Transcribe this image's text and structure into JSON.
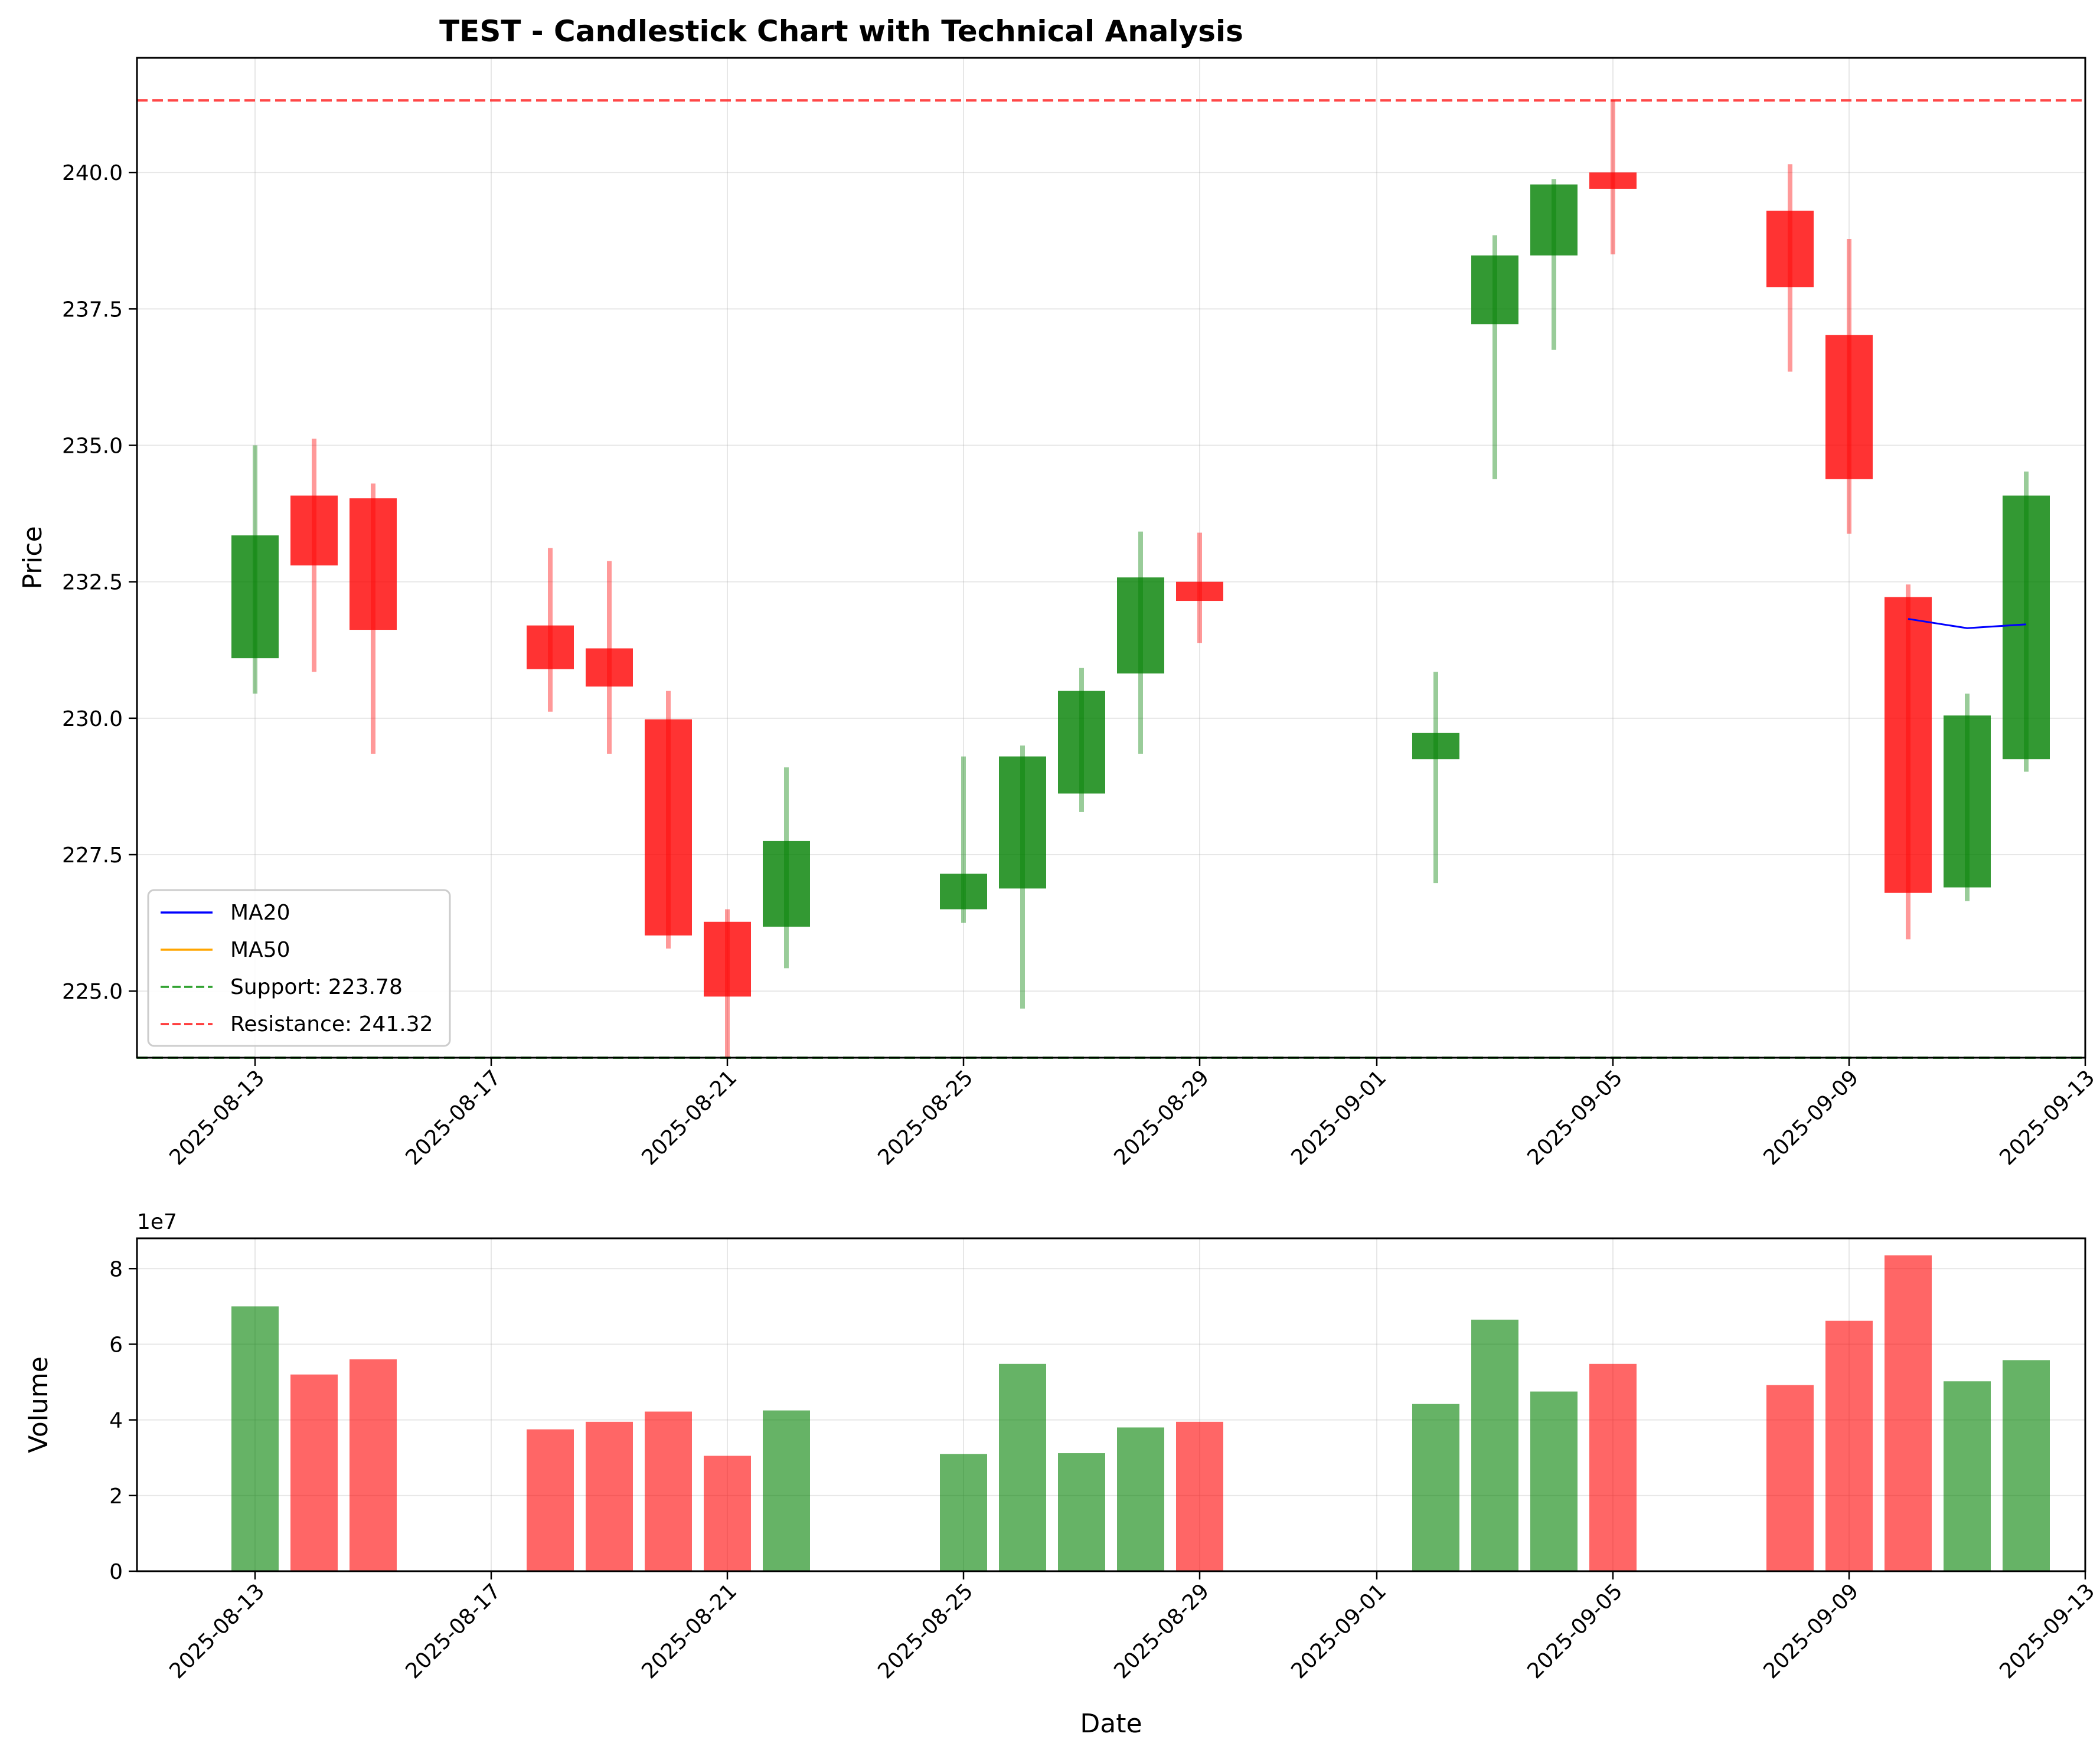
{
  "chart_data": [
    {
      "type": "candlestick",
      "title": "TEST - Candlestick Chart with Technical Analysis",
      "ylabel": "Price",
      "ylim": [
        223.78,
        242.1
      ],
      "xlim": [
        "2025-08-11",
        "2025-09-13"
      ],
      "y_ticks": [
        "225.0",
        "227.5",
        "230.0",
        "232.5",
        "235.0",
        "237.5",
        "240.0"
      ],
      "x_ticks": [
        "2025-08-13",
        "2025-08-17",
        "2025-08-21",
        "2025-08-25",
        "2025-08-29",
        "2025-09-01",
        "2025-09-05",
        "2025-09-09",
        "2025-09-13"
      ],
      "grid": true,
      "legend": {
        "placement": "lower-left",
        "entries": [
          "MA20",
          "MA50",
          "Support: 223.78",
          "Resistance: 241.32"
        ]
      },
      "ohlc": [
        {
          "date": "2025-08-13",
          "open": 231.1,
          "high": 235.0,
          "low": 230.45,
          "close": 233.35
        },
        {
          "date": "2025-08-14",
          "open": 234.08,
          "high": 235.12,
          "low": 230.85,
          "close": 232.8
        },
        {
          "date": "2025-08-15",
          "open": 234.03,
          "high": 234.3,
          "low": 229.35,
          "close": 231.62
        },
        {
          "date": "2025-08-18",
          "open": 231.7,
          "high": 233.12,
          "low": 230.12,
          "close": 230.9
        },
        {
          "date": "2025-08-19",
          "open": 231.28,
          "high": 232.88,
          "low": 229.35,
          "close": 230.58
        },
        {
          "date": "2025-08-20",
          "open": 229.98,
          "high": 230.5,
          "low": 225.78,
          "close": 226.02
        },
        {
          "date": "2025-08-21",
          "open": 226.27,
          "high": 226.5,
          "low": 223.78,
          "close": 224.9
        },
        {
          "date": "2025-08-22",
          "open": 226.18,
          "high": 229.1,
          "low": 225.42,
          "close": 227.75
        },
        {
          "date": "2025-08-25",
          "open": 226.5,
          "high": 229.3,
          "low": 226.25,
          "close": 227.15
        },
        {
          "date": "2025-08-26",
          "open": 226.88,
          "high": 229.5,
          "low": 224.68,
          "close": 229.3
        },
        {
          "date": "2025-08-27",
          "open": 228.62,
          "high": 230.92,
          "low": 228.28,
          "close": 230.5
        },
        {
          "date": "2025-08-28",
          "open": 230.82,
          "high": 233.42,
          "low": 229.35,
          "close": 232.58
        },
        {
          "date": "2025-08-29",
          "open": 232.5,
          "high": 233.4,
          "low": 231.38,
          "close": 232.15
        },
        {
          "date": "2025-09-02",
          "open": 229.25,
          "high": 230.85,
          "low": 226.98,
          "close": 229.73
        },
        {
          "date": "2025-09-03",
          "open": 237.22,
          "high": 238.85,
          "low": 234.38,
          "close": 238.48
        },
        {
          "date": "2025-09-04",
          "open": 238.48,
          "high": 239.88,
          "low": 236.75,
          "close": 239.78
        },
        {
          "date": "2025-09-05",
          "open": 240.0,
          "high": 241.32,
          "low": 238.5,
          "close": 239.7
        },
        {
          "date": "2025-09-08",
          "open": 239.3,
          "high": 240.15,
          "low": 236.35,
          "close": 237.9
        },
        {
          "date": "2025-09-09",
          "open": 237.02,
          "high": 238.78,
          "low": 233.38,
          "close": 234.38
        },
        {
          "date": "2025-09-10",
          "open": 232.22,
          "high": 232.45,
          "low": 225.95,
          "close": 226.8
        },
        {
          "date": "2025-09-11",
          "open": 226.9,
          "high": 230.45,
          "low": 226.65,
          "close": 230.05
        },
        {
          "date": "2025-09-12",
          "open": 229.25,
          "high": 234.52,
          "low": 229.02,
          "close": 234.08
        }
      ],
      "series": [
        {
          "name": "MA20",
          "color": "#0000ff",
          "points": [
            [
              "2025-09-10",
              231.82
            ],
            [
              "2025-09-11",
              231.65
            ],
            [
              "2025-09-12",
              231.72
            ]
          ]
        },
        {
          "name": "MA50",
          "color": "#ffa500",
          "points": []
        }
      ],
      "hlines": [
        {
          "name": "Support: 223.78",
          "value": 223.78,
          "color": "#2ca02c",
          "dashed": true
        },
        {
          "name": "Resistance: 241.32",
          "value": 241.32,
          "color": "#ff3333",
          "dashed": true
        }
      ],
      "colors": {
        "up": "#008000",
        "down": "#ff0000"
      }
    },
    {
      "type": "bar",
      "xlabel": "Date",
      "ylabel": "Volume",
      "scale_label": "1e7",
      "ylim": [
        0,
        8.8
      ],
      "y_ticks": [
        "0",
        "2",
        "4",
        "6",
        "8"
      ],
      "x_ticks": [
        "2025-08-13",
        "2025-08-17",
        "2025-08-21",
        "2025-08-25",
        "2025-08-29",
        "2025-09-01",
        "2025-09-05",
        "2025-09-09",
        "2025-09-13"
      ],
      "grid": true,
      "bars": [
        {
          "date": "2025-08-13",
          "value": 7.0,
          "dir": "up"
        },
        {
          "date": "2025-08-14",
          "value": 5.2,
          "dir": "down"
        },
        {
          "date": "2025-08-15",
          "value": 5.6,
          "dir": "down"
        },
        {
          "date": "2025-08-18",
          "value": 3.75,
          "dir": "down"
        },
        {
          "date": "2025-08-19",
          "value": 3.95,
          "dir": "down"
        },
        {
          "date": "2025-08-20",
          "value": 4.22,
          "dir": "down"
        },
        {
          "date": "2025-08-21",
          "value": 3.05,
          "dir": "down"
        },
        {
          "date": "2025-08-22",
          "value": 4.25,
          "dir": "up"
        },
        {
          "date": "2025-08-25",
          "value": 3.1,
          "dir": "up"
        },
        {
          "date": "2025-08-26",
          "value": 5.48,
          "dir": "up"
        },
        {
          "date": "2025-08-27",
          "value": 3.12,
          "dir": "up"
        },
        {
          "date": "2025-08-28",
          "value": 3.8,
          "dir": "up"
        },
        {
          "date": "2025-08-29",
          "value": 3.95,
          "dir": "down"
        },
        {
          "date": "2025-09-02",
          "value": 4.42,
          "dir": "up"
        },
        {
          "date": "2025-09-03",
          "value": 6.65,
          "dir": "up"
        },
        {
          "date": "2025-09-04",
          "value": 4.75,
          "dir": "up"
        },
        {
          "date": "2025-09-05",
          "value": 5.48,
          "dir": "down"
        },
        {
          "date": "2025-09-08",
          "value": 4.92,
          "dir": "down"
        },
        {
          "date": "2025-09-09",
          "value": 6.62,
          "dir": "down"
        },
        {
          "date": "2025-09-10",
          "value": 8.35,
          "dir": "down"
        },
        {
          "date": "2025-09-11",
          "value": 5.02,
          "dir": "up"
        },
        {
          "date": "2025-09-12",
          "value": 5.58,
          "dir": "up"
        }
      ],
      "colors": {
        "up": "#008000",
        "down": "#ff0000"
      }
    }
  ]
}
